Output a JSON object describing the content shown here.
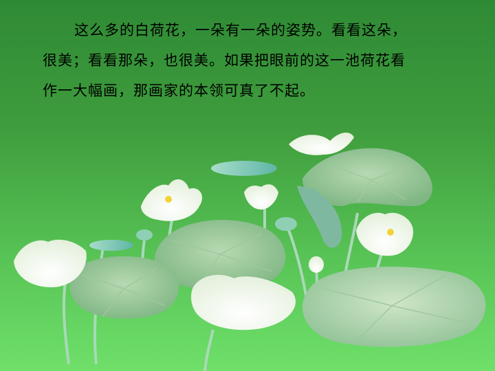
{
  "slide": {
    "paragraph_lines": [
      "这么多的白荷花，一朵有一朵的姿势。看看这朵，",
      "很美；看看那朵，也很美。如果把眼前的这一池荷花看",
      "作一大幅画，那画家的本领可真了不起。"
    ],
    "text_color": "#000000",
    "background_top": "#2f8a35",
    "background_bottom": "#6fe06a",
    "icons": [
      "lotus-pond-illustration"
    ]
  }
}
